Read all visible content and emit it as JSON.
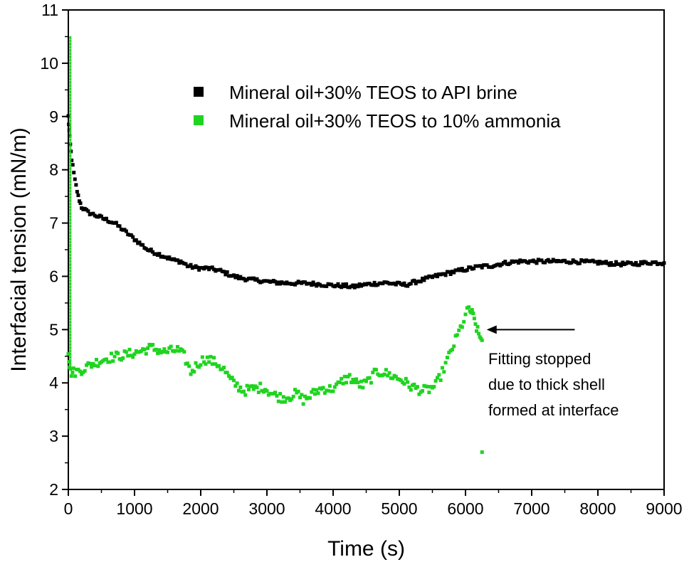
{
  "chart_data": {
    "type": "scatter",
    "xlabel": "Time (s)",
    "ylabel": "Interfacial tension (mN/m)",
    "xlim": [
      0,
      9000
    ],
    "ylim": [
      2,
      11
    ],
    "x_ticks": [
      0,
      1000,
      2000,
      3000,
      4000,
      5000,
      6000,
      7000,
      8000,
      9000
    ],
    "y_ticks": [
      2,
      3,
      4,
      5,
      6,
      7,
      8,
      9,
      10,
      11
    ],
    "grid": false,
    "legend_position": "top-right",
    "series": [
      {
        "name": "Mineral oil+30% TEOS to API brine",
        "color": "#000000",
        "marker": "square",
        "points": [
          [
            0,
            9.0
          ],
          [
            20,
            8.6
          ],
          [
            50,
            8.2
          ],
          [
            100,
            7.8
          ],
          [
            150,
            7.5
          ],
          [
            200,
            7.3
          ],
          [
            300,
            7.2
          ],
          [
            400,
            7.15
          ],
          [
            500,
            7.1
          ],
          [
            600,
            7.05
          ],
          [
            700,
            7.0
          ],
          [
            800,
            6.9
          ],
          [
            900,
            6.8
          ],
          [
            1000,
            6.7
          ],
          [
            1100,
            6.6
          ],
          [
            1200,
            6.5
          ],
          [
            1300,
            6.45
          ],
          [
            1400,
            6.4
          ],
          [
            1500,
            6.35
          ],
          [
            1600,
            6.3
          ],
          [
            1700,
            6.28
          ],
          [
            1800,
            6.2
          ],
          [
            1900,
            6.17
          ],
          [
            2000,
            6.15
          ],
          [
            2100,
            6.15
          ],
          [
            2200,
            6.13
          ],
          [
            2300,
            6.1
          ],
          [
            2400,
            6.05
          ],
          [
            2500,
            6.0
          ],
          [
            2600,
            5.97
          ],
          [
            2700,
            5.95
          ],
          [
            2800,
            5.93
          ],
          [
            2900,
            5.92
          ],
          [
            3000,
            5.9
          ],
          [
            3200,
            5.88
          ],
          [
            3400,
            5.87
          ],
          [
            3600,
            5.87
          ],
          [
            3800,
            5.85
          ],
          [
            4000,
            5.83
          ],
          [
            4200,
            5.82
          ],
          [
            4300,
            5.8
          ],
          [
            4400,
            5.83
          ],
          [
            4600,
            5.86
          ],
          [
            4800,
            5.88
          ],
          [
            5000,
            5.85
          ],
          [
            5100,
            5.84
          ],
          [
            5200,
            5.88
          ],
          [
            5400,
            5.95
          ],
          [
            5600,
            6.02
          ],
          [
            5800,
            6.08
          ],
          [
            6000,
            6.13
          ],
          [
            6200,
            6.18
          ],
          [
            6400,
            6.2
          ],
          [
            6600,
            6.25
          ],
          [
            6800,
            6.28
          ],
          [
            7000,
            6.28
          ],
          [
            7200,
            6.28
          ],
          [
            7400,
            6.28
          ],
          [
            7600,
            6.28
          ],
          [
            7800,
            6.27
          ],
          [
            8000,
            6.26
          ],
          [
            8200,
            6.24
          ],
          [
            8400,
            6.23
          ],
          [
            8600,
            6.24
          ],
          [
            8800,
            6.26
          ],
          [
            9000,
            6.25
          ]
        ]
      },
      {
        "name": "Mineral oil+30% TEOS to 10% ammonia",
        "color": "#1fd41f",
        "marker": "square",
        "points": [
          [
            0,
            4.6
          ],
          [
            30,
            4.2
          ],
          [
            80,
            4.2
          ],
          [
            150,
            4.22
          ],
          [
            250,
            4.28
          ],
          [
            350,
            4.35
          ],
          [
            450,
            4.4
          ],
          [
            550,
            4.45
          ],
          [
            650,
            4.48
          ],
          [
            750,
            4.5
          ],
          [
            850,
            4.52
          ],
          [
            950,
            4.55
          ],
          [
            1050,
            4.58
          ],
          [
            1150,
            4.62
          ],
          [
            1250,
            4.66
          ],
          [
            1350,
            4.62
          ],
          [
            1450,
            4.58
          ],
          [
            1550,
            4.6
          ],
          [
            1650,
            4.62
          ],
          [
            1750,
            4.5
          ],
          [
            1850,
            4.2
          ],
          [
            1950,
            4.35
          ],
          [
            2050,
            4.45
          ],
          [
            2150,
            4.42
          ],
          [
            2250,
            4.36
          ],
          [
            2350,
            4.25
          ],
          [
            2450,
            4.05
          ],
          [
            2550,
            3.95
          ],
          [
            2650,
            3.85
          ],
          [
            2750,
            3.88
          ],
          [
            2850,
            3.9
          ],
          [
            2950,
            3.92
          ],
          [
            3050,
            3.82
          ],
          [
            3150,
            3.75
          ],
          [
            3250,
            3.72
          ],
          [
            3350,
            3.75
          ],
          [
            3450,
            3.8
          ],
          [
            3550,
            3.68
          ],
          [
            3650,
            3.75
          ],
          [
            3750,
            3.85
          ],
          [
            3850,
            3.9
          ],
          [
            3950,
            3.88
          ],
          [
            4050,
            3.92
          ],
          [
            4150,
            4.05
          ],
          [
            4250,
            4.1
          ],
          [
            4350,
            4.0
          ],
          [
            4450,
            3.95
          ],
          [
            4550,
            4.05
          ],
          [
            4650,
            4.2
          ],
          [
            4750,
            4.2
          ],
          [
            4850,
            4.15
          ],
          [
            4950,
            4.1
          ],
          [
            5050,
            4.05
          ],
          [
            5150,
            3.95
          ],
          [
            5250,
            3.9
          ],
          [
            5350,
            3.85
          ],
          [
            5450,
            3.88
          ],
          [
            5550,
            3.95
          ],
          [
            5650,
            4.2
          ],
          [
            5750,
            4.5
          ],
          [
            5850,
            4.8
          ],
          [
            5950,
            5.1
          ],
          [
            6050,
            5.4
          ],
          [
            6100,
            5.3
          ],
          [
            6150,
            5.1
          ],
          [
            6200,
            4.9
          ],
          [
            6250,
            4.8
          ],
          [
            6250,
            2.7
          ]
        ]
      }
    ],
    "annotation": {
      "lines": [
        "Fitting stopped",
        "due to thick shell",
        "formed at interface"
      ],
      "arrow_from": [
        7650,
        5.0
      ],
      "arrow_to": [
        6320,
        5.0
      ]
    }
  }
}
